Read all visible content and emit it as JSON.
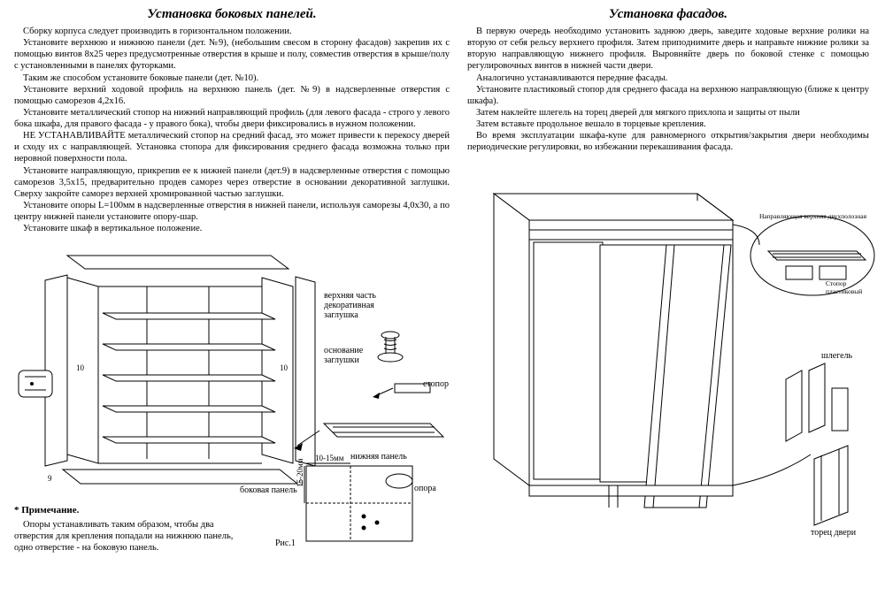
{
  "left": {
    "title": "Установка боковых панелей.",
    "paragraphs": [
      "Сборку корпуса следует производить в горизонтальном положении.",
      "Установите верхнюю и нижнюю панели (дет. №9), (небольшим свесом в сторону фасадов) закрепив их с помощью винтов 8х25 через предусмотренные отверстия в крыше и полу, совместив отверстия в крыше/полу с установленными в панелях футорками.",
      "Таким же способом установите боковые панели (дет. №10).",
      "Установите верхний ходовой профиль на верхнюю панель (дет. №9) в надсверленные отверстия с помощью саморезов 4,2х16.",
      "Установите металлический стопор на нижний направляющий профиль (для левого фасада - строго у левого бока шкафа, для правого фасада - у правого бока), чтобы двери фиксировались в нужном положении.",
      "НЕ УСТАНАВЛИВАЙТЕ металлический стопор на средний фасад, это может привести к перекосу дверей и сходу их с направляющей. Установка стопора для фиксирования среднего фасада возможна только при неровной поверхности пола.",
      "Установите направляющую, прикрепив ее к нижней панели (дет.9) в надсверленные отверстия с помощью саморезов 3,5х15, предварительно продев саморез через отверстие в основании декоративной заглушки. Сверху закройте саморез верхней хромированной частью заглушки.",
      "Установите опоры L=100мм в надсверленные отверстия в нижней панели, используя саморезы 4,0х30, а по центру нижней панели установите опору-шар.",
      "Установите шкаф в вертикальное положение."
    ],
    "labels": {
      "plug_top": "верхняя часть\nдекоративная\nзаглушка",
      "plug_base": "основание\nзаглушки",
      "stopper": "стопор",
      "bottom_panel": "нижняя панель",
      "side_panel": "боковая панель",
      "support": "опора",
      "dim1": "15-20мм",
      "dim2": "10-15мм",
      "num9": "9",
      "num10": "10",
      "fig": "Рис.1"
    },
    "note_title": "* Примечание.",
    "note_body": "Опоры устанавливать таким образом, чтобы два отверстия для крепления попадали на нижнюю панель, одно отверстие - на боковую панель."
  },
  "right": {
    "title": "Установка фасадов.",
    "paragraphs": [
      "В первую очередь необходимо установить заднюю дверь, заведите ходовые верхние ролики на вторую от себя рельсу верхнего профиля. Затем приподнимите дверь и направьте нижние ролики за вторую направляющую нижнего профиля. Выровняйте дверь по боковой стенке с помощью регулировочных винтов в нижней части двери.",
      "Аналогично устанавливаются передние фасады.",
      "Установите пластиковый стопор для среднего фасада на верхнюю направляющую (ближе к центру шкафа).",
      "Затем наклейте шлегель на торец дверей для мягкого прихлопа и защиты от пыли",
      "Затем вставьте продольное вешало в торцевые крепления.",
      "Во время эксплуатации шкафа-купе для равномерного открытия/закрытия двери необходимы периодические регулировки, во избежании перекашивания фасада."
    ],
    "labels": {
      "rail_top": "Направляющая верхняя двухполозная",
      "stopper_plastic": "Стопор пластиковый",
      "shlegel": "шлегель",
      "door_end": "торец двери"
    }
  },
  "style": {
    "background": "#ffffff",
    "text_color": "#000000",
    "stroke_color": "#000000",
    "title_fontsize": 15,
    "body_fontsize": 10.5,
    "label_fontsize": 10
  }
}
